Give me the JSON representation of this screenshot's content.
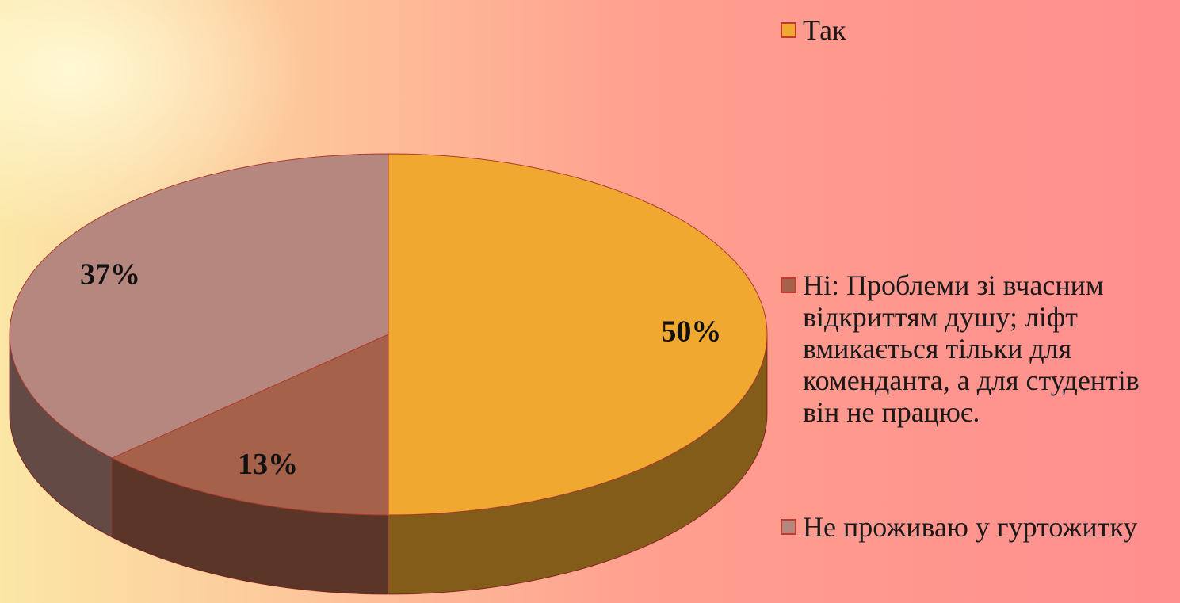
{
  "chart_data": {
    "type": "pie",
    "categories": [
      "Так",
      "Ні: Проблеми зі вчасним відкриттям душу; ліфт вмикається тільки для коменданта, а для студентів він не працює.",
      "Не проживаю у гуртожитку"
    ],
    "values": [
      50,
      13,
      37
    ],
    "value_labels": [
      "50%",
      "13%",
      "37%"
    ],
    "colors": [
      "#f0a830",
      "#a5614a",
      "#b5877e"
    ],
    "legend": "right"
  }
}
